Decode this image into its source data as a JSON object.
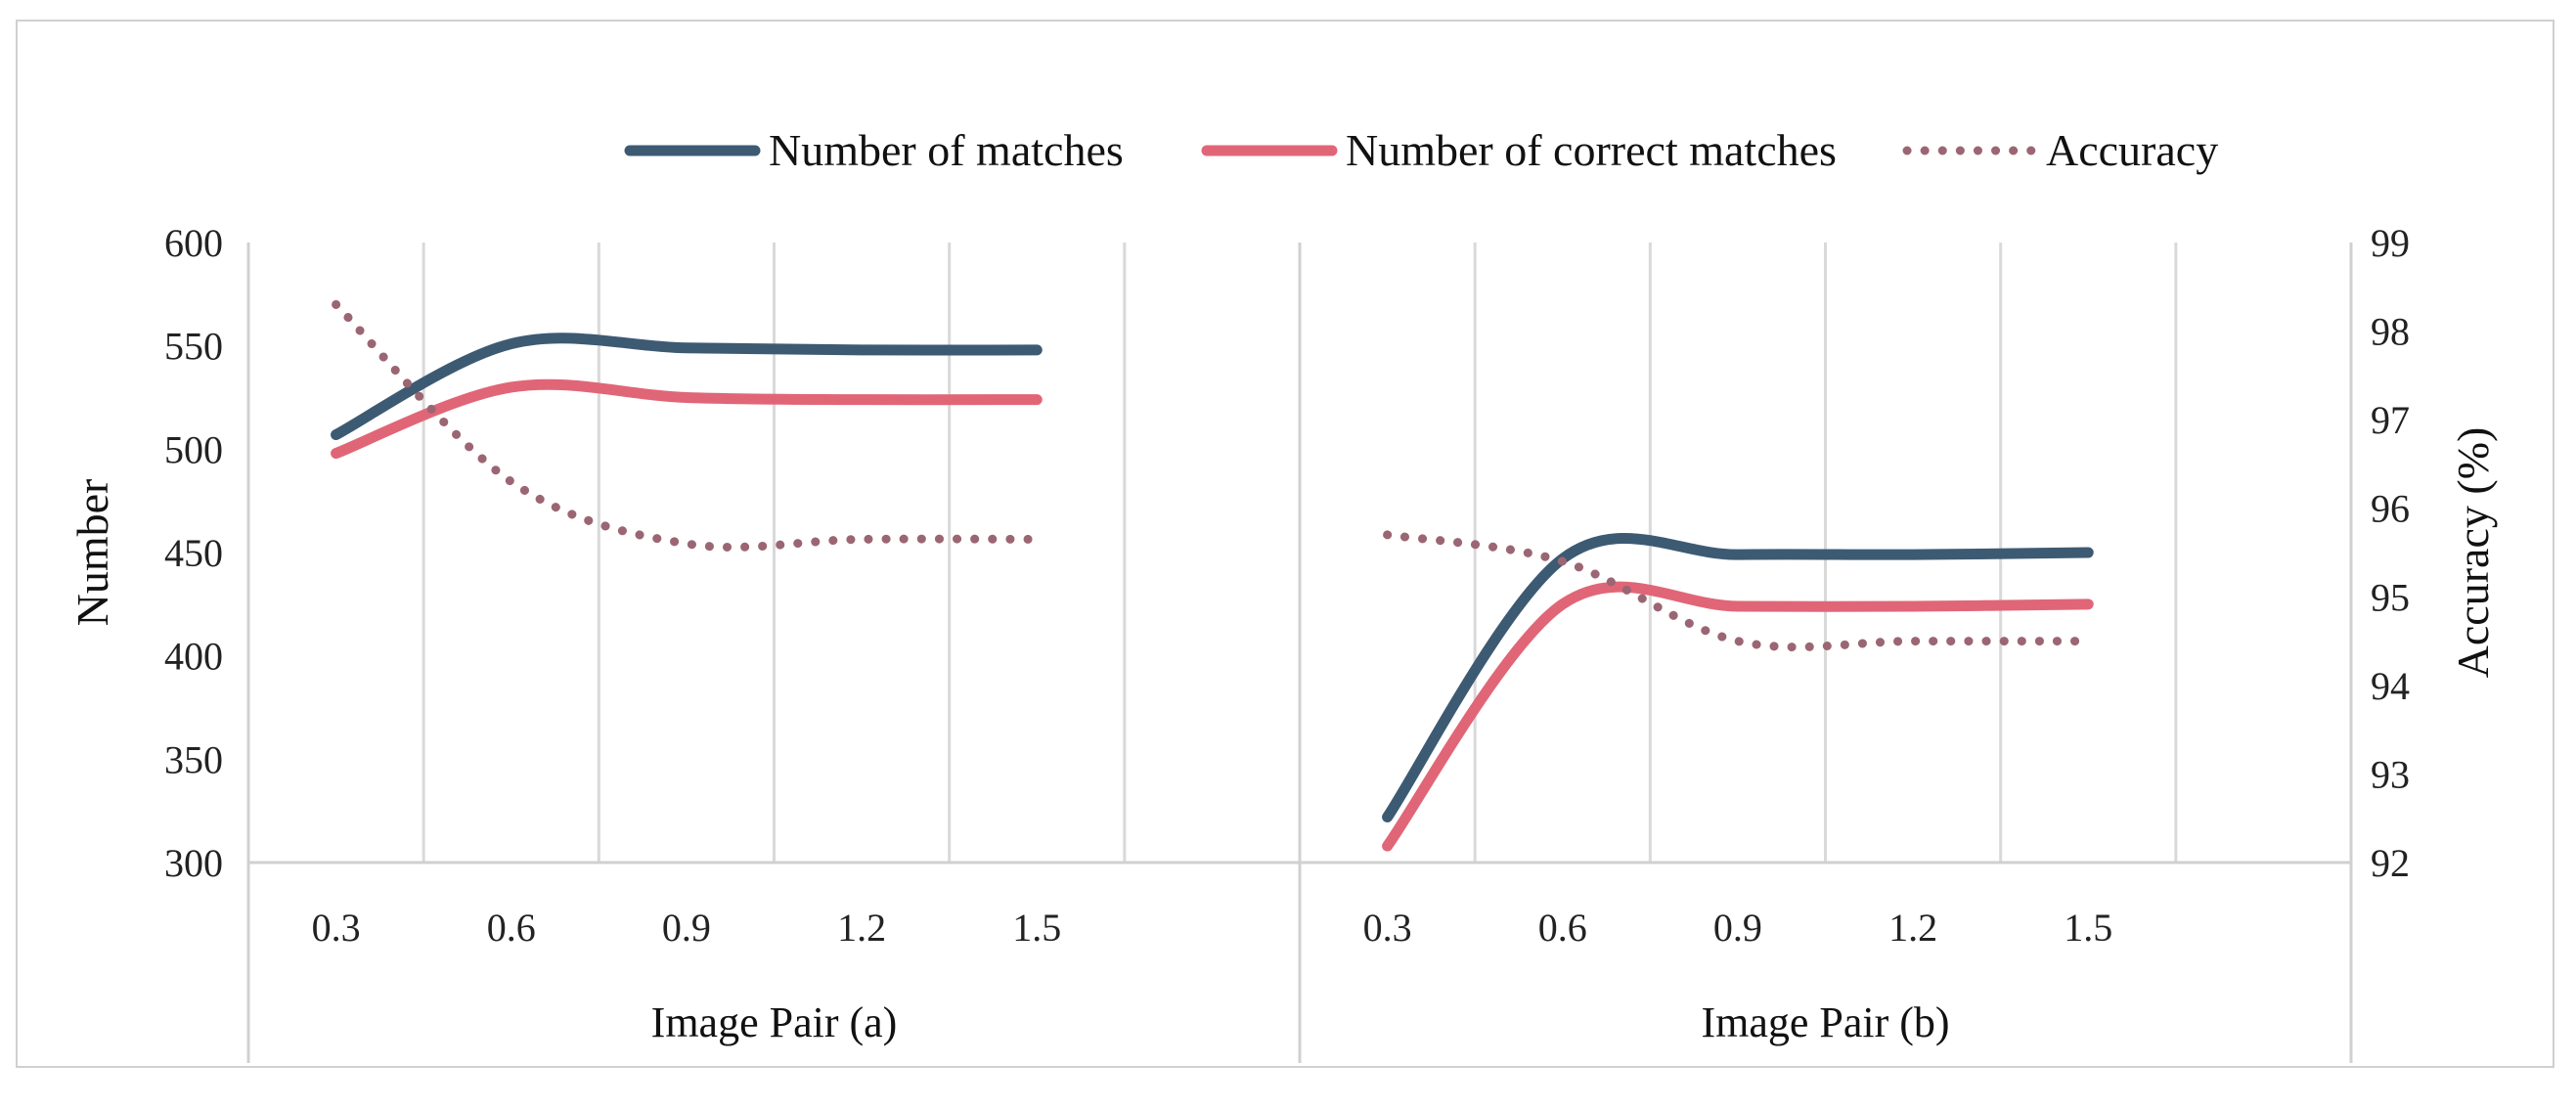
{
  "chart_data": {
    "type": "line",
    "categories": [
      "0.3",
      "0.6",
      "0.9",
      "1.2",
      "1.5"
    ],
    "groups": [
      "Image Pair (a)",
      "Image Pair (b)"
    ],
    "ylabel": "Number",
    "y2label": "Accuracy (%)",
    "ylim": [
      300,
      600
    ],
    "y_ticks": [
      "300",
      "350",
      "400",
      "450",
      "500",
      "550",
      "600"
    ],
    "y2lim": [
      92,
      99
    ],
    "y2_ticks": [
      "92",
      "93",
      "94",
      "95",
      "96",
      "97",
      "98",
      "99"
    ],
    "legend_position": "top",
    "grid": true,
    "series": [
      {
        "name": "Number of  matches",
        "axis": "left",
        "style": "solid",
        "color": "#3d5a73",
        "values": [
          [
            507,
            551,
            549,
            548,
            548
          ],
          [
            322,
            447,
            449,
            449,
            450
          ]
        ]
      },
      {
        "name": "Number of correct matches",
        "axis": "left",
        "style": "solid",
        "color": "#e06677",
        "values": [
          [
            498,
            530,
            525,
            524,
            524
          ],
          [
            308,
            425,
            424,
            424,
            425
          ]
        ]
      },
      {
        "name": "Accuracy",
        "axis": "right",
        "style": "dotted",
        "color": "#9b6673",
        "values": [
          [
            98.3,
            96.3,
            95.6,
            95.65,
            95.65
          ],
          [
            95.7,
            95.4,
            94.5,
            94.5,
            94.5
          ]
        ]
      }
    ]
  }
}
